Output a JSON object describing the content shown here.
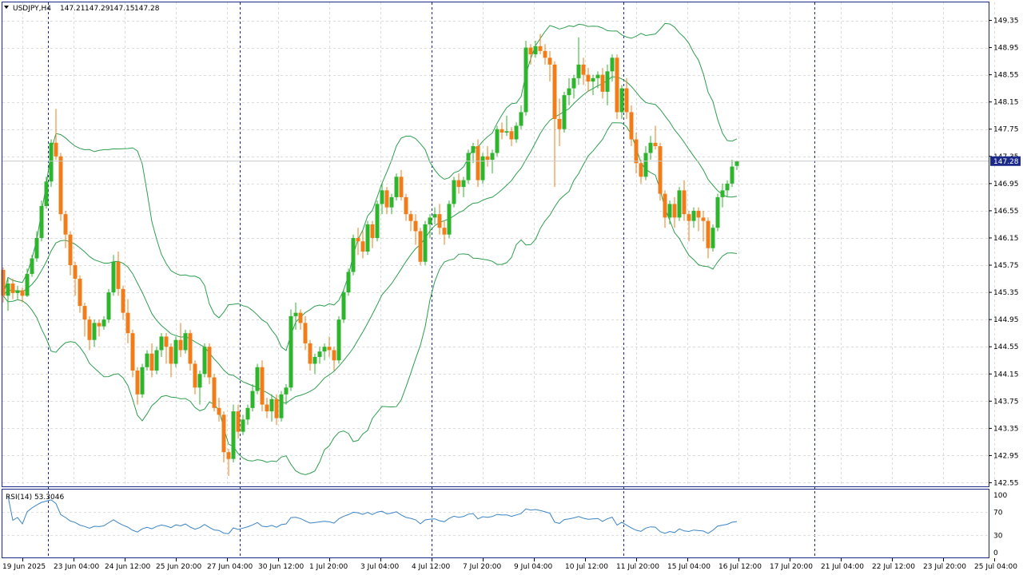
{
  "header": {
    "symbol": "USDJPY,H4",
    "open": "147.21",
    "high": "147.29",
    "low": "147.15",
    "close": "147.28"
  },
  "price_axis": {
    "labels": [
      "149.35",
      "148.95",
      "148.55",
      "148.15",
      "147.75",
      "147.35",
      "146.95",
      "146.55",
      "146.15",
      "145.75",
      "145.35",
      "144.95",
      "144.55",
      "144.15",
      "143.75",
      "143.35",
      "142.95",
      "142.55"
    ],
    "current_price_label": "147.28"
  },
  "time_axis": {
    "labels": [
      "19 Jun 2025",
      "23 Jun 04:00",
      "24 Jun 12:00",
      "25 Jun 20:00",
      "27 Jun 04:00",
      "30 Jun 12:00",
      "1 Jul 20:00",
      "3 Jul 04:00",
      "4 Jul 12:00",
      "7 Jul 20:00",
      "9 Jul 04:00",
      "10 Jul 12:00",
      "11 Jul 20:00",
      "15 Jul 04:00",
      "16 Jul 12:00",
      "17 Jul 20:00",
      "21 Jul 04:00",
      "22 Jul 12:00",
      "23 Jul 20:00",
      "25 Jul 04:00"
    ]
  },
  "rsi": {
    "label": "RSI(14) 53.3046",
    "axis_labels": [
      "100",
      "70",
      "30",
      "0"
    ],
    "levels": [
      70,
      30
    ]
  },
  "colors": {
    "bull": "#2db52d",
    "bear": "#f07d1a",
    "bands": "#2e9e4f",
    "rsi_line": "#3a84c6",
    "current_price_bg": "#1b2a8a"
  },
  "chart_data": {
    "type": "candlestick",
    "symbol": "USDJPY",
    "timeframe": "H4",
    "y_range": [
      142.5,
      149.5
    ],
    "indicators": [
      "Bollinger Bands",
      "RSI(14)"
    ],
    "candles": [
      [
        145.68,
        145.72,
        145.2,
        145.3
      ],
      [
        145.3,
        145.55,
        145.08,
        145.48
      ],
      [
        145.48,
        145.55,
        145.25,
        145.34
      ],
      [
        145.34,
        145.45,
        145.25,
        145.38
      ],
      [
        145.38,
        145.42,
        145.2,
        145.3
      ],
      [
        145.3,
        145.7,
        145.28,
        145.62
      ],
      [
        145.62,
        145.9,
        145.58,
        145.85
      ],
      [
        145.85,
        146.25,
        145.8,
        146.15
      ],
      [
        146.15,
        146.7,
        146.1,
        146.62
      ],
      [
        146.62,
        147.05,
        146.58,
        146.98
      ],
      [
        146.98,
        147.6,
        146.9,
        147.55
      ],
      [
        147.55,
        148.05,
        147.3,
        147.35
      ],
      [
        147.35,
        147.4,
        146.4,
        146.5
      ],
      [
        146.5,
        146.55,
        146.0,
        146.2
      ],
      [
        146.2,
        146.25,
        145.6,
        145.75
      ],
      [
        145.75,
        145.8,
        145.3,
        145.55
      ],
      [
        145.55,
        145.6,
        145.05,
        145.15
      ],
      [
        145.15,
        145.2,
        144.7,
        144.95
      ],
      [
        144.95,
        145.0,
        144.5,
        144.65
      ],
      [
        144.65,
        144.95,
        144.55,
        144.9
      ],
      [
        144.9,
        144.95,
        144.7,
        144.85
      ],
      [
        144.85,
        145.0,
        144.8,
        144.95
      ],
      [
        144.95,
        145.4,
        144.9,
        145.35
      ],
      [
        145.35,
        145.9,
        145.3,
        145.8
      ],
      [
        145.8,
        145.95,
        145.3,
        145.4
      ],
      [
        145.4,
        145.45,
        144.95,
        145.05
      ],
      [
        145.05,
        145.25,
        144.6,
        144.75
      ],
      [
        144.75,
        144.8,
        144.1,
        144.2
      ],
      [
        144.2,
        144.25,
        143.7,
        143.85
      ],
      [
        143.85,
        144.3,
        143.8,
        144.25
      ],
      [
        144.25,
        144.5,
        144.2,
        144.45
      ],
      [
        144.45,
        144.6,
        144.1,
        144.2
      ],
      [
        144.2,
        144.55,
        144.15,
        144.5
      ],
      [
        144.5,
        144.75,
        144.4,
        144.7
      ],
      [
        144.7,
        144.75,
        144.3,
        144.55
      ],
      [
        144.55,
        144.6,
        144.1,
        144.3
      ],
      [
        144.3,
        144.7,
        144.25,
        144.65
      ],
      [
        144.65,
        144.9,
        144.4,
        144.5
      ],
      [
        144.5,
        144.8,
        144.45,
        144.75
      ],
      [
        144.75,
        144.8,
        144.2,
        144.3
      ],
      [
        144.3,
        144.35,
        143.85,
        143.95
      ],
      [
        143.95,
        144.2,
        143.7,
        144.15
      ],
      [
        144.15,
        144.6,
        144.1,
        144.55
      ],
      [
        144.55,
        144.6,
        144.0,
        144.1
      ],
      [
        144.1,
        144.15,
        143.6,
        143.65
      ],
      [
        143.65,
        143.8,
        143.45,
        143.55
      ],
      [
        143.55,
        143.6,
        142.85,
        143.0
      ],
      [
        143.0,
        143.05,
        142.65,
        142.9
      ],
      [
        142.9,
        143.7,
        142.85,
        143.6
      ],
      [
        143.6,
        143.7,
        143.2,
        143.3
      ],
      [
        143.3,
        143.55,
        143.25,
        143.48
      ],
      [
        143.48,
        143.7,
        143.4,
        143.65
      ],
      [
        143.65,
        144.0,
        143.6,
        143.9
      ],
      [
        143.9,
        144.3,
        143.85,
        144.25
      ],
      [
        144.25,
        144.35,
        143.6,
        143.7
      ],
      [
        143.7,
        143.8,
        143.5,
        143.6
      ],
      [
        143.6,
        143.85,
        143.45,
        143.78
      ],
      [
        143.78,
        143.85,
        143.4,
        143.5
      ],
      [
        143.5,
        143.9,
        143.45,
        143.85
      ],
      [
        143.85,
        144.0,
        143.7,
        143.95
      ],
      [
        143.95,
        145.1,
        143.9,
        145.0
      ],
      [
        145.0,
        145.2,
        144.8,
        145.05
      ],
      [
        145.05,
        145.1,
        144.8,
        144.9
      ],
      [
        144.9,
        145.0,
        144.5,
        144.6
      ],
      [
        144.6,
        144.65,
        144.2,
        144.3
      ],
      [
        144.3,
        144.45,
        144.15,
        144.4
      ],
      [
        144.4,
        144.55,
        144.3,
        144.48
      ],
      [
        144.48,
        144.6,
        144.35,
        144.55
      ],
      [
        144.55,
        144.7,
        144.4,
        144.5
      ],
      [
        144.5,
        144.55,
        144.2,
        144.35
      ],
      [
        144.35,
        145.0,
        144.3,
        144.95
      ],
      [
        144.95,
        145.4,
        144.9,
        145.35
      ],
      [
        145.35,
        145.7,
        145.3,
        145.65
      ],
      [
        145.65,
        146.2,
        145.6,
        146.15
      ],
      [
        146.15,
        146.3,
        145.9,
        146.1
      ],
      [
        146.1,
        146.25,
        145.85,
        145.95
      ],
      [
        145.95,
        146.4,
        145.9,
        146.35
      ],
      [
        146.35,
        146.4,
        146.0,
        146.15
      ],
      [
        146.15,
        146.7,
        146.1,
        146.65
      ],
      [
        146.65,
        146.95,
        146.5,
        146.85
      ],
      [
        146.85,
        146.9,
        146.5,
        146.6
      ],
      [
        146.6,
        146.8,
        146.5,
        146.75
      ],
      [
        146.75,
        147.1,
        146.7,
        147.05
      ],
      [
        147.05,
        147.15,
        146.7,
        146.75
      ],
      [
        146.75,
        146.8,
        146.4,
        146.5
      ],
      [
        146.5,
        146.55,
        146.25,
        146.4
      ],
      [
        146.4,
        146.5,
        146.05,
        146.25
      ],
      [
        146.25,
        146.3,
        145.75,
        145.8
      ],
      [
        145.8,
        146.4,
        145.75,
        146.35
      ],
      [
        146.35,
        146.5,
        146.15,
        146.45
      ],
      [
        146.45,
        146.6,
        146.35,
        146.5
      ],
      [
        146.5,
        146.65,
        146.2,
        146.3
      ],
      [
        146.3,
        146.4,
        146.05,
        146.2
      ],
      [
        146.2,
        146.7,
        146.15,
        146.65
      ],
      [
        146.65,
        147.05,
        146.6,
        147.0
      ],
      [
        147.0,
        147.1,
        146.8,
        146.9
      ],
      [
        146.9,
        147.05,
        146.75,
        147.0
      ],
      [
        147.0,
        147.45,
        146.95,
        147.4
      ],
      [
        147.4,
        147.55,
        147.25,
        147.5
      ],
      [
        147.5,
        147.6,
        146.9,
        147.0
      ],
      [
        147.0,
        147.4,
        146.95,
        147.35
      ],
      [
        147.35,
        147.5,
        147.2,
        147.3
      ],
      [
        147.3,
        147.45,
        147.1,
        147.4
      ],
      [
        147.4,
        147.8,
        147.35,
        147.75
      ],
      [
        147.75,
        147.85,
        147.6,
        147.7
      ],
      [
        147.7,
        147.95,
        147.65,
        147.72
      ],
      [
        147.72,
        147.78,
        147.5,
        147.6
      ],
      [
        147.6,
        147.85,
        147.55,
        147.8
      ],
      [
        147.8,
        148.1,
        147.75,
        148.0
      ],
      [
        148.0,
        149.05,
        147.95,
        148.95
      ],
      [
        148.95,
        149.0,
        148.7,
        148.85
      ],
      [
        148.85,
        149.05,
        148.8,
        148.97
      ],
      [
        148.97,
        149.15,
        148.85,
        148.9
      ],
      [
        148.9,
        149.0,
        148.7,
        148.8
      ],
      [
        148.8,
        148.9,
        148.45,
        148.7
      ],
      [
        148.7,
        148.75,
        146.9,
        147.9
      ],
      [
        147.9,
        148.2,
        147.5,
        147.75
      ],
      [
        147.75,
        148.3,
        147.7,
        148.25
      ],
      [
        148.25,
        148.5,
        148.1,
        148.35
      ],
      [
        148.35,
        148.55,
        148.2,
        148.5
      ],
      [
        148.5,
        149.1,
        148.4,
        148.7
      ],
      [
        148.7,
        148.8,
        148.4,
        148.55
      ],
      [
        148.55,
        148.65,
        148.3,
        148.45
      ],
      [
        148.45,
        148.55,
        148.25,
        148.5
      ],
      [
        148.5,
        148.6,
        148.35,
        148.55
      ],
      [
        148.55,
        148.65,
        148.2,
        148.3
      ],
      [
        148.3,
        148.7,
        148.1,
        148.6
      ],
      [
        148.6,
        148.85,
        148.45,
        148.8
      ],
      [
        148.8,
        148.85,
        147.9,
        148.0
      ],
      [
        148.0,
        148.4,
        147.9,
        148.35
      ],
      [
        148.35,
        148.5,
        147.9,
        148.0
      ],
      [
        148.0,
        148.1,
        147.5,
        147.6
      ],
      [
        147.6,
        147.7,
        147.1,
        147.25
      ],
      [
        147.25,
        147.3,
        146.95,
        147.05
      ],
      [
        147.05,
        147.5,
        147.0,
        147.4
      ],
      [
        147.4,
        147.65,
        147.3,
        147.55
      ],
      [
        147.55,
        147.8,
        147.45,
        147.5
      ],
      [
        147.5,
        147.55,
        146.7,
        146.8
      ],
      [
        146.8,
        146.85,
        146.3,
        146.45
      ],
      [
        146.45,
        146.7,
        146.35,
        146.65
      ],
      [
        146.65,
        146.75,
        146.3,
        146.45
      ],
      [
        146.45,
        146.9,
        146.4,
        146.85
      ],
      [
        146.85,
        147.0,
        146.4,
        146.5
      ],
      [
        146.5,
        146.55,
        146.1,
        146.4
      ],
      [
        146.4,
        146.6,
        146.3,
        146.55
      ],
      [
        146.55,
        146.6,
        146.25,
        146.45
      ],
      [
        146.45,
        146.55,
        146.1,
        146.4
      ],
      [
        146.4,
        146.45,
        145.85,
        146.0
      ],
      [
        146.0,
        146.35,
        145.95,
        146.3
      ],
      [
        146.3,
        146.8,
        146.25,
        146.75
      ],
      [
        146.75,
        146.95,
        146.6,
        146.85
      ],
      [
        146.85,
        147.0,
        146.75,
        146.95
      ],
      [
        146.95,
        147.3,
        146.9,
        147.2
      ],
      [
        147.21,
        147.29,
        147.15,
        147.28
      ]
    ]
  }
}
